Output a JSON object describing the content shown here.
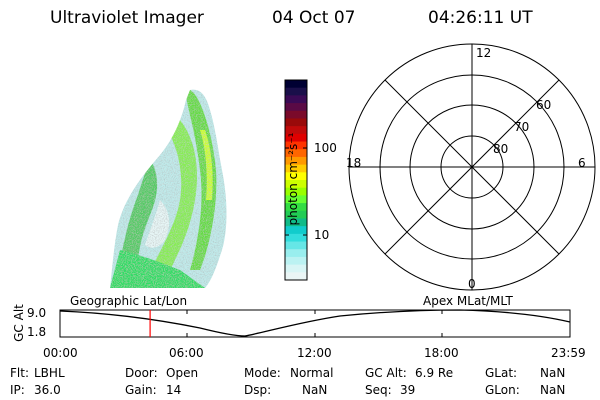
{
  "header": {
    "instrument": "Ultraviolet Imager",
    "date": "04 Oct 07",
    "time": "04:26:11 UT"
  },
  "colorbar": {
    "label": "photon cm⁻²s⁻¹",
    "ticks": [
      "100",
      "10"
    ],
    "colors": [
      "#000033",
      "#1a0f4a",
      "#3a0a55",
      "#5a0a45",
      "#7a0a2a",
      "#990a0a",
      "#c00a0a",
      "#e00000",
      "#ff3300",
      "#ff6600",
      "#ff9900",
      "#ffcc00",
      "#ffff00",
      "#ccff00",
      "#99ff00",
      "#66ff33",
      "#33dd44",
      "#22cc55",
      "#11bb88",
      "#11cccc",
      "#33dddd",
      "#66e6e6",
      "#99eeee",
      "#bbf2f2",
      "#d8f5f5",
      "#eaf5f5"
    ]
  },
  "polar_plot": {
    "mlt_labels": [
      "12",
      "18",
      "6",
      "0"
    ],
    "mlat_labels": [
      "60",
      "70",
      "80"
    ]
  },
  "timeline": {
    "y_label": "GC Alt",
    "y_ticks": [
      "9.0",
      "1.8"
    ],
    "left_title": "Geographic Lat/Lon",
    "right_title": "Apex MLat/MLT",
    "x_ticks": [
      "00:00",
      "06:00",
      "12:00",
      "18:00",
      "23:59"
    ],
    "current_time_fraction": 0.1766
  },
  "status": [
    [
      {
        "label": "Flt:",
        "value": "LBHL"
      },
      {
        "label": "Door:",
        "value": "Open"
      },
      {
        "label": "Mode:",
        "value": "Normal"
      },
      {
        "label": "GC Alt:",
        "value": "6.9 Re"
      },
      {
        "label": "GLat:",
        "value": "NaN"
      }
    ],
    [
      {
        "label": "IP:",
        "value": "36.0"
      },
      {
        "label": "Gain:",
        "value": "14"
      },
      {
        "label": "Dsp:",
        "value": "NaN"
      },
      {
        "label": "Seq:",
        "value": "39"
      },
      {
        "label": "GLon:",
        "value": "NaN"
      }
    ]
  ]
}
